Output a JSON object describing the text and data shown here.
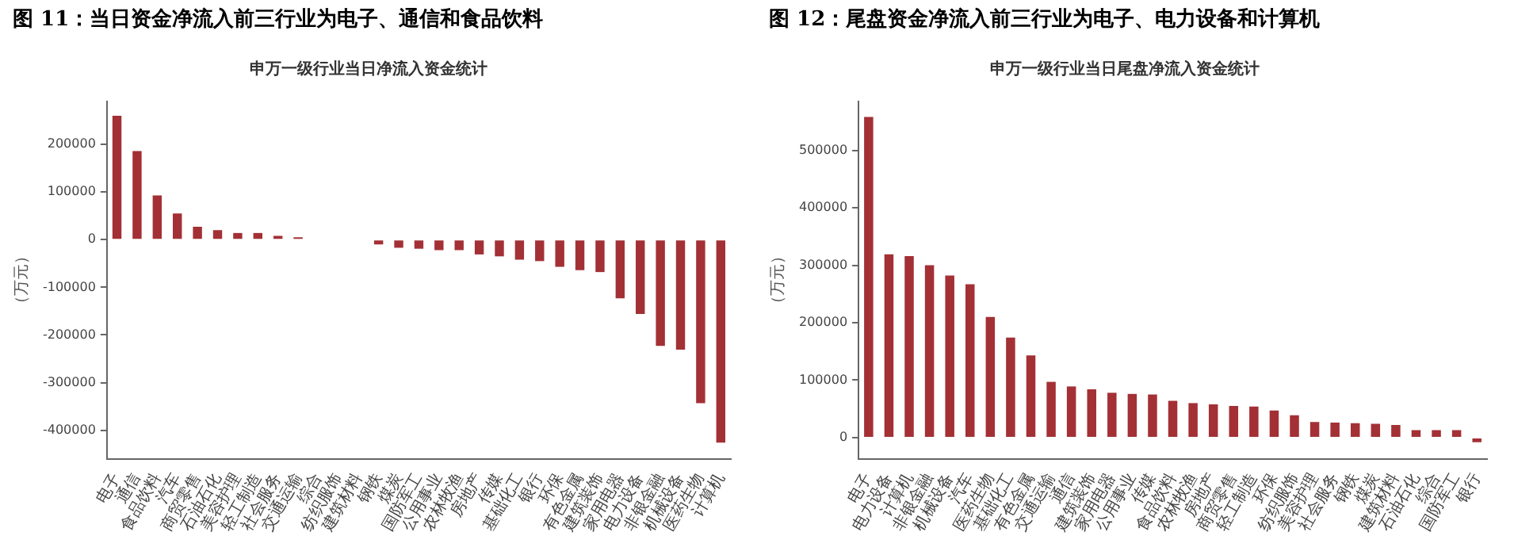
{
  "chart_data": [
    {
      "type": "bar",
      "title": "图 11：当日资金净流入前三行业为电子、通信和食品饮料",
      "subtitle": "申万一级行业当日净流入资金统计",
      "ylabel": "（万元）",
      "categories": [
        "电子",
        "通信",
        "食品饮料",
        "汽车",
        "商贸零售",
        "石油石化",
        "美容护理",
        "轻工制造",
        "社会服务",
        "交通运输",
        "综合",
        "纺织服饰",
        "建筑材料",
        "钢铁",
        "煤炭",
        "国防军工",
        "公用事业",
        "农林牧渔",
        "房地产",
        "传媒",
        "基础化工",
        "银行",
        "环保",
        "有色金属",
        "建筑装饰",
        "家用电器",
        "电力设备",
        "非银金融",
        "机械设备",
        "医药生物",
        "计算机"
      ],
      "values": [
        260000,
        186000,
        93000,
        55000,
        27000,
        20000,
        14000,
        14000,
        8000,
        5000,
        null,
        null,
        null,
        -10000,
        -17000,
        -19000,
        -22000,
        -22000,
        -31000,
        -35000,
        -42000,
        -45000,
        -57000,
        -64000,
        -68000,
        -123000,
        -156000,
        -223000,
        -231000,
        -343000,
        -426000
      ],
      "color": "#a33035",
      "ylim": [
        -460000,
        290000
      ],
      "yticks": [
        -400000,
        -300000,
        -200000,
        -100000,
        0,
        100000,
        200000
      ],
      "grid": false,
      "legend": false
    },
    {
      "type": "bar",
      "title": "图 12：尾盘资金净流入前三行业为电子、电力设备和计算机",
      "subtitle": "申万一级行业当日尾盘净流入资金统计",
      "ylabel": "（万元）",
      "categories": [
        "电子",
        "电力设备",
        "计算机",
        "非银金融",
        "机械设备",
        "汽车",
        "医药生物",
        "基础化工",
        "有色金属",
        "交通运输",
        "通信",
        "建筑装饰",
        "家用电器",
        "公用事业",
        "传媒",
        "食品饮料",
        "农林牧渔",
        "房地产",
        "商贸零售",
        "轻工制造",
        "环保",
        "纺织服饰",
        "美容护理",
        "社会服务",
        "钢铁",
        "煤炭",
        "建筑材料",
        "石油石化",
        "综合",
        "国防军工",
        "银行"
      ],
      "values": [
        558000,
        319000,
        316000,
        300000,
        282000,
        267000,
        210000,
        174000,
        143000,
        97000,
        89000,
        84000,
        78000,
        76000,
        75000,
        64000,
        60000,
        58000,
        55000,
        54000,
        47000,
        39000,
        27000,
        26000,
        25000,
        24000,
        22000,
        13000,
        13000,
        13000,
        -8000
      ],
      "color": "#a33035",
      "ylim": [
        -37000,
        585000
      ],
      "yticks": [
        0,
        100000,
        200000,
        300000,
        400000,
        500000
      ],
      "grid": false,
      "legend": false
    }
  ]
}
